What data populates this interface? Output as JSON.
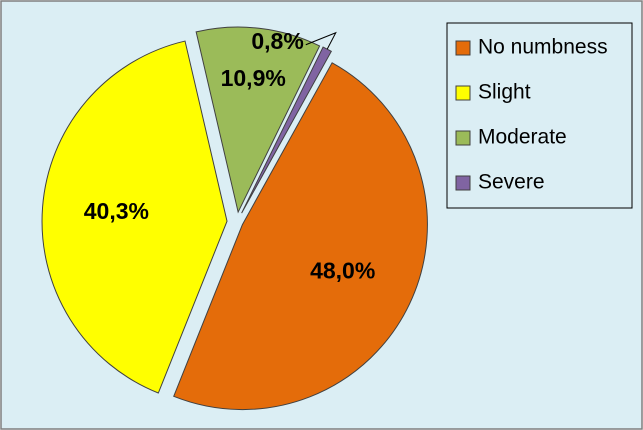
{
  "chart_data": {
    "type": "pie",
    "categories": [
      "No numbness",
      "Slight",
      "Moderate",
      "Severe"
    ],
    "values": [
      48.0,
      40.3,
      10.9,
      0.8
    ],
    "value_labels": [
      "48,0%",
      "40,3%",
      "10,9%",
      "0,8%"
    ],
    "colors": [
      "#e46c0a",
      "#ffff00",
      "#9bbb59",
      "#8064a2"
    ],
    "legend": "right"
  }
}
